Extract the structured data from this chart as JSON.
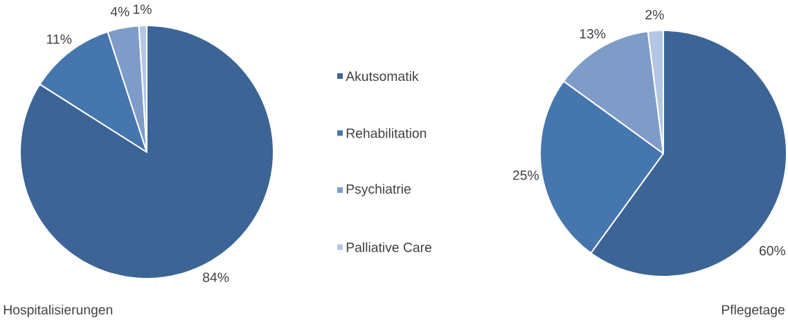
{
  "chart_data": [
    {
      "type": "pie",
      "title": "Hospitalisierungen",
      "categories": [
        "Akutsomatik",
        "Rehabilitation",
        "Psychiatrie",
        "Palliative Care"
      ],
      "values": [
        84,
        11,
        4,
        1
      ],
      "colors": [
        "#3c6496",
        "#4676ae",
        "#7f9cc8",
        "#b4c6e4"
      ],
      "value_labels": [
        "84%",
        "11%",
        "4%",
        "1%"
      ],
      "legend": "right"
    },
    {
      "type": "pie",
      "title": "Pflegetage",
      "categories": [
        null,
        null,
        null,
        null
      ],
      "values": [
        60,
        25,
        13,
        2
      ],
      "colors": [
        "#3c6496",
        "#4676ae",
        "#7f9cc8",
        "#b4c6e4"
      ],
      "value_labels": [
        "60%",
        "25%",
        "13%",
        "2%"
      ]
    }
  ]
}
